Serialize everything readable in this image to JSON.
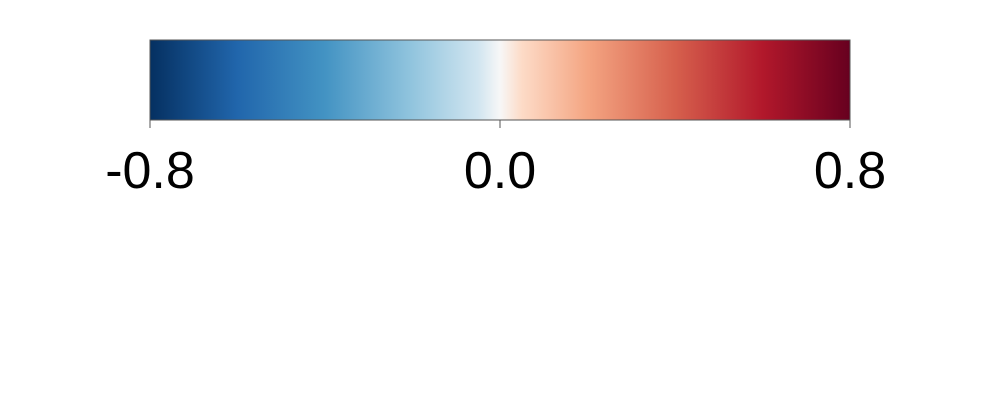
{
  "chart_data": {
    "type": "heatmap",
    "title": "",
    "xlabel": "",
    "ylabel": "",
    "orientation": "horizontal",
    "range": [
      -0.8,
      0.8
    ],
    "ticks": [
      {
        "value": -0.8,
        "label": "-0.8"
      },
      {
        "value": 0.0,
        "label": "0.0"
      },
      {
        "value": 0.8,
        "label": "0.8"
      }
    ],
    "colormap": [
      {
        "value": -0.8,
        "color": "#053061"
      },
      {
        "value": -0.6,
        "color": "#2166ac"
      },
      {
        "value": -0.4,
        "color": "#4393c3"
      },
      {
        "value": -0.2,
        "color": "#92c5de"
      },
      {
        "value": -0.05,
        "color": "#d1e5f0"
      },
      {
        "value": 0.0,
        "color": "#f7f7f7"
      },
      {
        "value": 0.05,
        "color": "#fddbc7"
      },
      {
        "value": 0.2,
        "color": "#f4a582"
      },
      {
        "value": 0.4,
        "color": "#d6604d"
      },
      {
        "value": 0.6,
        "color": "#b2182b"
      },
      {
        "value": 0.8,
        "color": "#67001f"
      }
    ],
    "colors": {
      "frame": "#555555",
      "ticks": "#555555",
      "text": "#000000"
    }
  }
}
